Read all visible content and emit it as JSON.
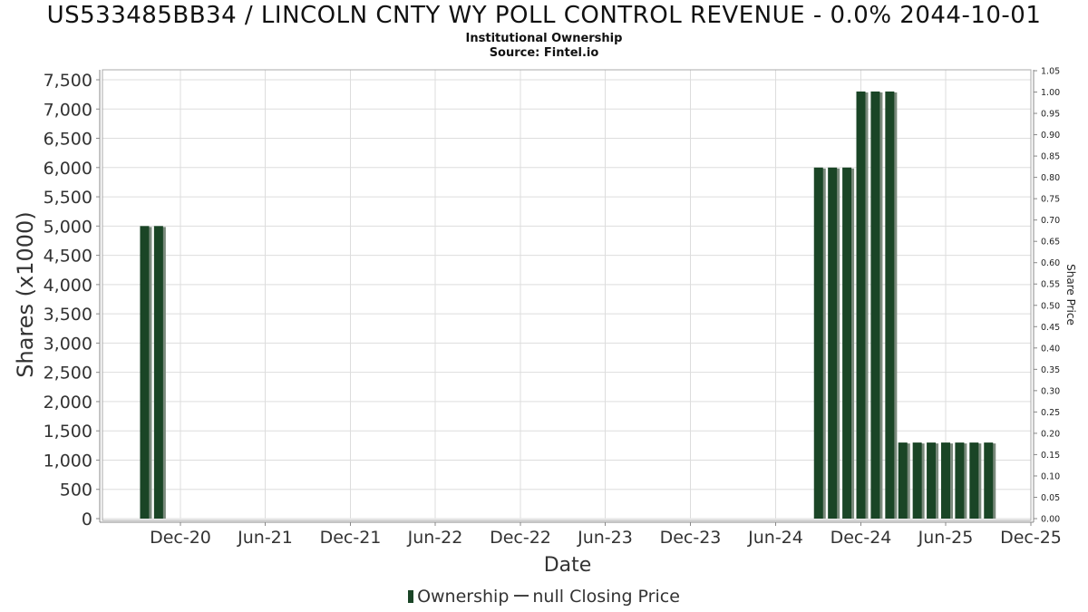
{
  "title": "US533485BB34 / LINCOLN CNTY WY POLL CONTROL REVENUE - 0.0% 2044-10-01",
  "subtitle_1": "Institutional Ownership",
  "subtitle_2": "Source: Fintel.io",
  "legend": {
    "ownership": "Ownership",
    "price": "null Closing Price"
  },
  "colors": {
    "bar": "#1a4526",
    "bar_shadow": "#7a8a7c",
    "grid": "#dddddd"
  },
  "chart_data": {
    "type": "bar",
    "xlabel": "Date",
    "ylabel": "Shares (x1000)",
    "y2label": "Share Price",
    "ylim": [
      0,
      7500
    ],
    "y2lim": [
      0,
      1.05
    ],
    "yticks": [
      "0",
      "500",
      "1,000",
      "1,500",
      "2,000",
      "2,500",
      "3,000",
      "3,500",
      "4,000",
      "4,500",
      "5,000",
      "5,500",
      "6,000",
      "6,500",
      "7,000",
      "7,500"
    ],
    "y2ticks": [
      "0.00",
      "0.05",
      "0.10",
      "0.15",
      "0.20",
      "0.25",
      "0.30",
      "0.35",
      "0.40",
      "0.45",
      "0.50",
      "0.55",
      "0.60",
      "0.65",
      "0.70",
      "0.75",
      "0.80",
      "0.85",
      "0.90",
      "0.95",
      "1.00",
      "1.05"
    ],
    "xlim": [
      "2020-06-01",
      "2025-12-01"
    ],
    "xticks": [
      {
        "label": "Dec-20",
        "date": "2020-12-01"
      },
      {
        "label": "Jun-21",
        "date": "2021-06-01"
      },
      {
        "label": "Dec-21",
        "date": "2021-12-01"
      },
      {
        "label": "Jun-22",
        "date": "2022-06-01"
      },
      {
        "label": "Dec-22",
        "date": "2022-12-01"
      },
      {
        "label": "Jun-23",
        "date": "2023-06-01"
      },
      {
        "label": "Dec-23",
        "date": "2023-12-01"
      },
      {
        "label": "Jun-24",
        "date": "2024-06-01"
      },
      {
        "label": "Dec-24",
        "date": "2024-12-01"
      },
      {
        "label": "Jun-25",
        "date": "2025-06-01"
      },
      {
        "label": "Dec-25",
        "date": "2025-12-01"
      }
    ],
    "series": [
      {
        "name": "Ownership",
        "points": [
          {
            "x": "2020-09-15",
            "y": 5000
          },
          {
            "x": "2020-10-15",
            "y": 5000
          },
          {
            "x": "2024-09-01",
            "y": 6000
          },
          {
            "x": "2024-10-01",
            "y": 6000
          },
          {
            "x": "2024-11-01",
            "y": 6000
          },
          {
            "x": "2024-12-01",
            "y": 7300
          },
          {
            "x": "2025-01-01",
            "y": 7300
          },
          {
            "x": "2025-02-01",
            "y": 7300
          },
          {
            "x": "2025-03-01",
            "y": 1300
          },
          {
            "x": "2025-04-01",
            "y": 1300
          },
          {
            "x": "2025-05-01",
            "y": 1300
          },
          {
            "x": "2025-06-01",
            "y": 1300
          },
          {
            "x": "2025-07-01",
            "y": 1300
          },
          {
            "x": "2025-08-01",
            "y": 1300
          },
          {
            "x": "2025-09-01",
            "y": 1300
          }
        ]
      }
    ]
  }
}
